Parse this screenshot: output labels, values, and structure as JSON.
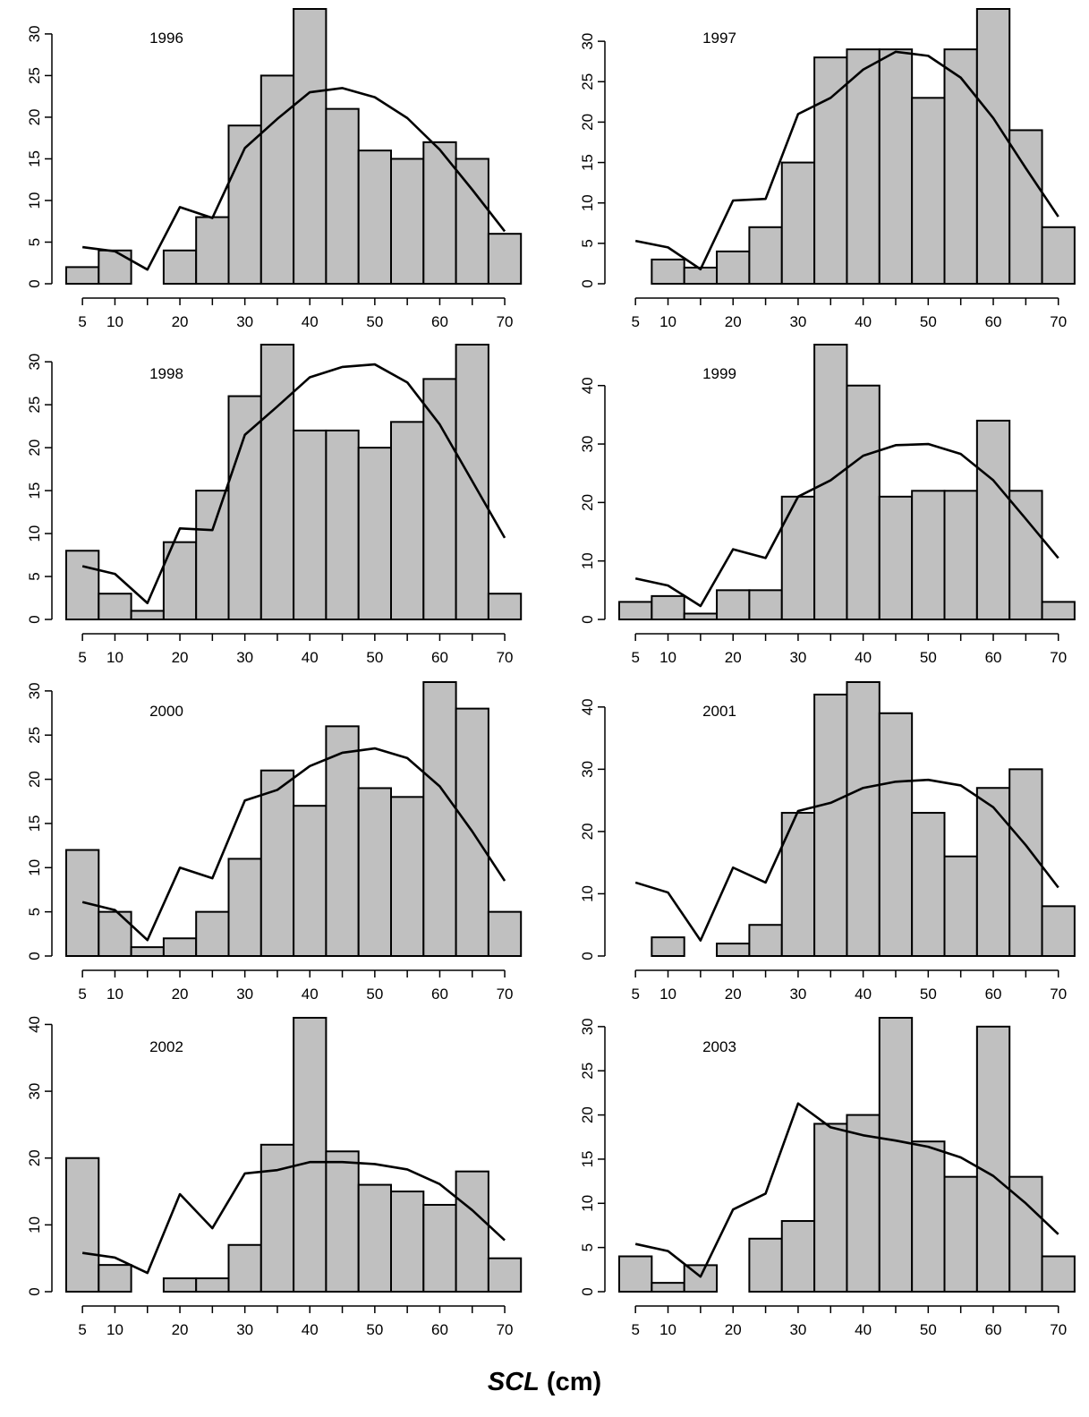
{
  "x_label": {
    "var": "SCL",
    "unit": "(cm)"
  },
  "chart_data": [
    {
      "type": "bar",
      "title": "1996",
      "bins": [
        5,
        10,
        15,
        20,
        25,
        30,
        35,
        40,
        45,
        50,
        55,
        60,
        65,
        70
      ],
      "values": [
        2,
        4,
        0,
        4,
        8,
        19,
        25,
        33,
        21,
        16,
        15,
        17,
        15,
        6
      ],
      "curve": [
        4.4,
        3.9,
        1.7,
        9.2,
        7.9,
        16.3,
        19.8,
        23.0,
        23.5,
        22.4,
        19.9,
        16.1,
        11.3,
        6.3
      ],
      "ylim": [
        0,
        33
      ],
      "yticks": [
        0,
        5,
        10,
        15,
        20,
        25,
        30
      ],
      "xticks": [
        5,
        10,
        20,
        30,
        40,
        50,
        60,
        70
      ]
    },
    {
      "type": "bar",
      "title": "1997",
      "bins": [
        5,
        10,
        15,
        20,
        25,
        30,
        35,
        40,
        45,
        50,
        55,
        60,
        65,
        70
      ],
      "values": [
        0,
        3,
        2,
        4,
        7,
        15,
        28,
        29,
        29,
        23,
        29,
        34,
        19,
        7
      ],
      "curve": [
        5.3,
        4.5,
        1.8,
        10.3,
        10.5,
        21.0,
        23.0,
        26.5,
        28.7,
        28.2,
        25.5,
        20.5,
        14.3,
        8.3
      ],
      "ylim": [
        0,
        34
      ],
      "yticks": [
        0,
        5,
        10,
        15,
        20,
        25,
        30
      ],
      "xticks": [
        5,
        10,
        20,
        30,
        40,
        50,
        60,
        70
      ]
    },
    {
      "type": "bar",
      "title": "1998",
      "bins": [
        5,
        10,
        15,
        20,
        25,
        30,
        35,
        40,
        45,
        50,
        55,
        60,
        65,
        70
      ],
      "values": [
        8,
        3,
        1,
        9,
        15,
        26,
        32,
        22,
        22,
        20,
        23,
        28,
        32,
        3
      ],
      "curve": [
        6.2,
        5.3,
        1.9,
        10.6,
        10.4,
        21.5,
        24.8,
        28.2,
        29.4,
        29.7,
        27.6,
        22.7,
        16.1,
        9.5
      ],
      "ylim": [
        0,
        32
      ],
      "yticks": [
        0,
        5,
        10,
        15,
        20,
        25,
        30
      ],
      "xticks": [
        5,
        10,
        20,
        30,
        40,
        50,
        60,
        70
      ]
    },
    {
      "type": "bar",
      "title": "1999",
      "bins": [
        5,
        10,
        15,
        20,
        25,
        30,
        35,
        40,
        45,
        50,
        55,
        60,
        65,
        70
      ],
      "values": [
        3,
        4,
        1,
        5,
        5,
        21,
        47,
        40,
        21,
        22,
        22,
        34,
        22,
        3
      ],
      "curve": [
        7.0,
        5.8,
        2.3,
        12.0,
        10.5,
        21.0,
        23.8,
        28.0,
        29.8,
        30.0,
        28.3,
        23.8,
        17.2,
        10.5
      ],
      "ylim": [
        0,
        47
      ],
      "yticks": [
        0,
        10,
        20,
        30,
        40
      ],
      "xticks": [
        5,
        10,
        20,
        30,
        40,
        50,
        60,
        70
      ]
    },
    {
      "type": "bar",
      "title": "2000",
      "bins": [
        5,
        10,
        15,
        20,
        25,
        30,
        35,
        40,
        45,
        50,
        55,
        60,
        65,
        70
      ],
      "values": [
        12,
        5,
        1,
        2,
        5,
        11,
        21,
        17,
        26,
        19,
        18,
        31,
        28,
        5
      ],
      "curve": [
        6.1,
        5.2,
        1.8,
        10.0,
        8.8,
        17.6,
        18.8,
        21.5,
        23.0,
        23.5,
        22.4,
        19.2,
        14.1,
        8.5
      ],
      "ylim": [
        0,
        31
      ],
      "yticks": [
        0,
        5,
        10,
        15,
        20,
        25,
        30
      ],
      "xticks": [
        5,
        10,
        20,
        30,
        40,
        50,
        60,
        70
      ]
    },
    {
      "type": "bar",
      "title": "2001",
      "bins": [
        5,
        10,
        15,
        20,
        25,
        30,
        35,
        40,
        45,
        50,
        55,
        60,
        65,
        70
      ],
      "values": [
        0,
        3,
        0,
        2,
        5,
        23,
        42,
        44,
        39,
        23,
        16,
        27,
        30,
        8
      ],
      "curve": [
        11.8,
        10.2,
        2.5,
        14.2,
        11.8,
        23.3,
        24.6,
        27.0,
        28.0,
        28.3,
        27.4,
        23.9,
        17.8,
        11.0
      ],
      "ylim": [
        0,
        44
      ],
      "yticks": [
        0,
        10,
        20,
        30,
        40
      ],
      "xticks": [
        5,
        10,
        20,
        30,
        40,
        50,
        60,
        70
      ]
    },
    {
      "type": "bar",
      "title": "2002",
      "bins": [
        5,
        10,
        15,
        20,
        25,
        30,
        35,
        40,
        45,
        50,
        55,
        60,
        65,
        70
      ],
      "values": [
        20,
        4,
        0,
        2,
        2,
        7,
        22,
        41,
        21,
        16,
        15,
        13,
        18,
        5
      ],
      "curve": [
        5.8,
        5.1,
        2.8,
        14.6,
        9.5,
        17.7,
        18.2,
        19.4,
        19.4,
        19.1,
        18.3,
        16.1,
        12.2,
        7.7
      ],
      "ylim": [
        0,
        41
      ],
      "yticks": [
        0,
        10,
        20,
        30,
        40
      ],
      "xticks": [
        5,
        10,
        20,
        30,
        40,
        50,
        60,
        70
      ]
    },
    {
      "type": "bar",
      "title": "2003",
      "bins": [
        5,
        10,
        15,
        20,
        25,
        30,
        35,
        40,
        45,
        50,
        55,
        60,
        65,
        70
      ],
      "values": [
        4,
        1,
        3,
        0,
        6,
        8,
        19,
        20,
        31,
        17,
        13,
        30,
        13,
        4
      ],
      "curve": [
        5.4,
        4.6,
        1.7,
        9.3,
        11.1,
        21.3,
        18.6,
        17.7,
        17.1,
        16.4,
        15.2,
        13.1,
        10.0,
        6.5
      ],
      "ylim": [
        0,
        31
      ],
      "yticks": [
        0,
        5,
        10,
        15,
        20,
        25,
        30
      ],
      "xticks": [
        5,
        10,
        20,
        30,
        40,
        50,
        60,
        70
      ]
    }
  ]
}
